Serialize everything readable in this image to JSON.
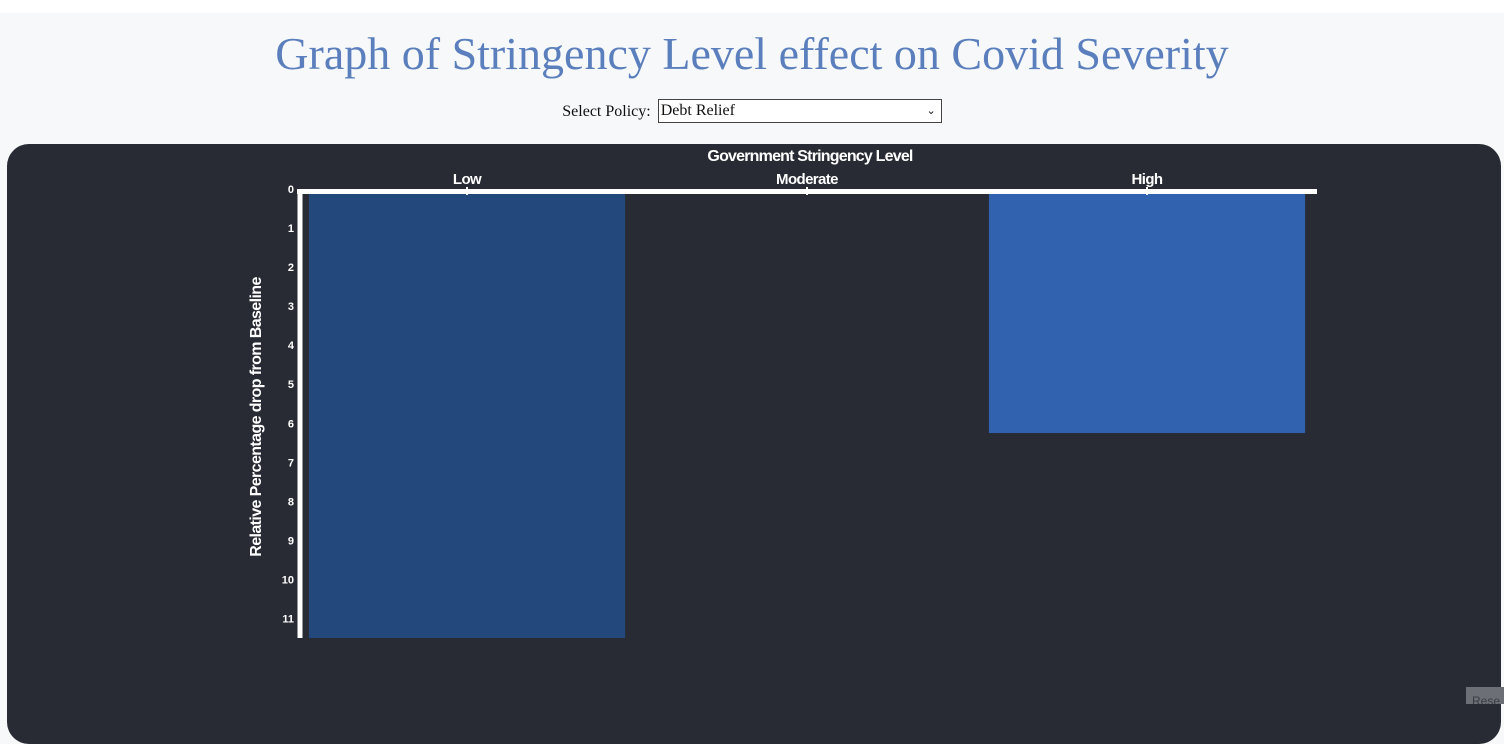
{
  "page": {
    "title": "Graph of Stringency Level effect on Covid Severity"
  },
  "policy_selector": {
    "label": "Select Policy:",
    "selected": "Debt Relief"
  },
  "corner_button": {
    "label": "Rese"
  },
  "chart_data": {
    "type": "bar",
    "title": "Government Stringency Level",
    "xlabel": "",
    "ylabel": "Relative Percentage drop from Baseline",
    "categories": [
      "Low",
      "Moderate",
      "High"
    ],
    "values": [
      11.5,
      0,
      6.25
    ],
    "yticks": [
      0,
      1,
      2,
      3,
      4,
      5,
      6,
      7,
      8,
      9,
      10,
      11
    ],
    "ylim": [
      0,
      11.5
    ],
    "y_axis_inverted": true,
    "x_axis_position": "top",
    "colors": [
      "#22487c",
      "#22487c",
      "#3062b0"
    ],
    "axis_color": "#ffffff",
    "background": "#282b33"
  }
}
